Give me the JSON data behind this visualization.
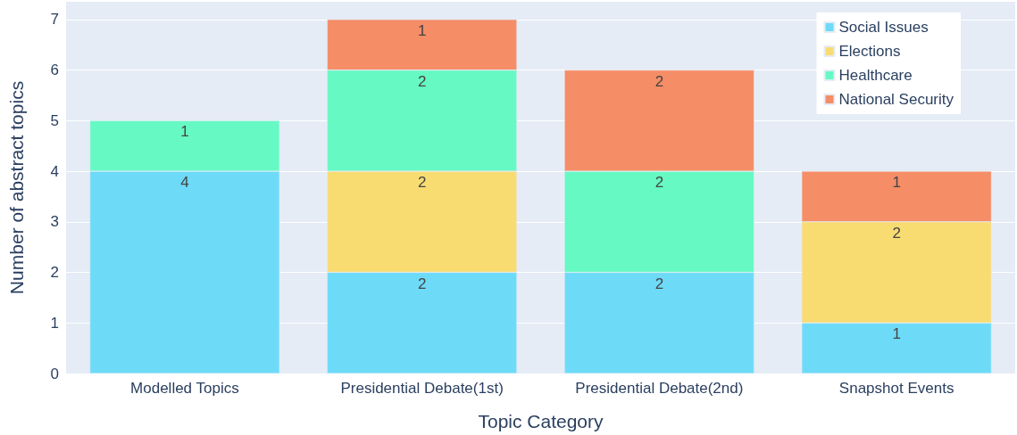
{
  "chart_data": {
    "type": "bar",
    "stacked": true,
    "xlabel": "Topic Category",
    "ylabel": "Number of abstract topics",
    "categories": [
      "Modelled Topics",
      "Presidential Debate(1st)",
      "Presidential Debate(2nd)",
      "Snapshot Events"
    ],
    "series": [
      {
        "name": "Social Issues",
        "color": "#6ddbf8",
        "values": [
          4,
          2,
          2,
          1
        ]
      },
      {
        "name": "Elections",
        "color": "#f8dc72",
        "values": [
          null,
          2,
          null,
          2
        ]
      },
      {
        "name": "Healthcare",
        "color": "#66f9c4",
        "values": [
          1,
          2,
          2,
          null
        ]
      },
      {
        "name": "National Security",
        "color": "#f58d67",
        "values": [
          null,
          1,
          2,
          1
        ]
      }
    ],
    "ylim": [
      0,
      7.35
    ],
    "yticks": [
      0,
      1,
      2,
      3,
      4,
      5,
      6,
      7
    ],
    "grid": "y",
    "legend": "top right",
    "data_labels": true
  }
}
